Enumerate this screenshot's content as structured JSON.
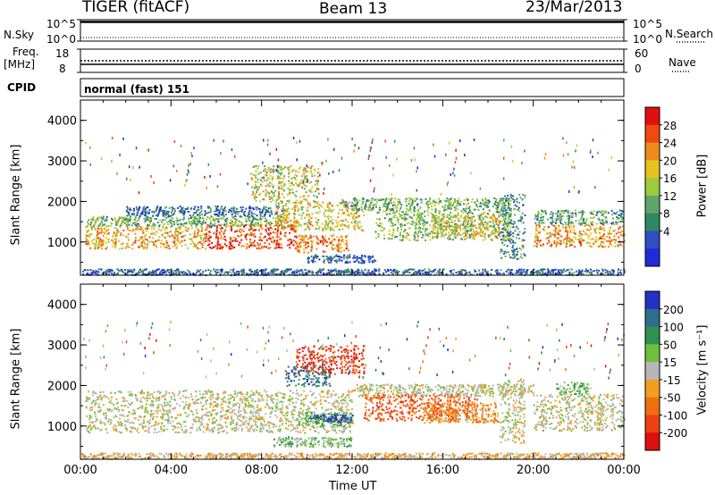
{
  "header": {
    "radar_title": "TIGER (fitACF)",
    "beam": "Beam 13",
    "date": "23/Mar/2013"
  },
  "strips": {
    "nsky_label": "N.Sky",
    "nsky_ticks": [
      "10^5",
      "10^0"
    ],
    "nsearch_label": "N.Search",
    "nsearch_ticks": [
      "10^5",
      "10^0"
    ],
    "freq_label_1": "Freq.",
    "freq_label_2": "[MHz]",
    "freq_ticks": [
      "18",
      "8"
    ],
    "nave_label": "Nave",
    "nave_ticks": [
      "60",
      "0"
    ],
    "cpid_label": "CPID",
    "cpid_value": "normal (fast) 151"
  },
  "colors": {
    "power_scale": [
      "#1f2bd9",
      "#2d4fc0",
      "#2f8a64",
      "#5fa56a",
      "#9ccb3c",
      "#e6c21e",
      "#f08a1c",
      "#ee4a12",
      "#e01010"
    ],
    "velocity_scale": [
      "#2530c8",
      "#2d6e8c",
      "#2f9150",
      "#6ec13c",
      "#b7b7b7",
      "#f0a020",
      "#f07010",
      "#ee4010",
      "#dd0f0f"
    ]
  },
  "chart_data": [
    {
      "type": "heatmap",
      "name": "Power",
      "xlabel": "",
      "ylabel": "Slant Range [km]",
      "x_ticks": [
        "00:00",
        "04:00",
        "08:00",
        "12:00",
        "16:00",
        "20:00",
        "00:00"
      ],
      "y_ticks": [
        "1000",
        "2000",
        "3000",
        "4000"
      ],
      "xlim_hours": [
        0,
        24
      ],
      "ylim_km": [
        180,
        4500
      ],
      "colorbar": {
        "label": "Power [dB]",
        "ticks": [
          "28",
          "24",
          "20",
          "16",
          "12",
          "8",
          "4"
        ],
        "range": [
          0,
          30
        ]
      },
      "regions": [
        {
          "t": [
            0.2,
            5.5
          ],
          "r": [
            850,
            1400
          ],
          "value": 20
        },
        {
          "t": [
            5.5,
            9.5
          ],
          "r": [
            850,
            1450
          ],
          "value": 26
        },
        {
          "t": [
            9.5,
            11.8
          ],
          "r": [
            750,
            1200
          ],
          "value": 22
        },
        {
          "t": [
            0.2,
            9.0
          ],
          "r": [
            1400,
            1650
          ],
          "value": 12
        },
        {
          "t": [
            2.0,
            9.0
          ],
          "r": [
            1650,
            1900
          ],
          "value": 7
        },
        {
          "t": [
            8.5,
            12.5
          ],
          "r": [
            1300,
            2000
          ],
          "value": 18
        },
        {
          "t": [
            11.5,
            19.0
          ],
          "r": [
            1800,
            2100
          ],
          "value": 12
        },
        {
          "t": [
            13.0,
            19.0
          ],
          "r": [
            1050,
            1800
          ],
          "value": 13
        },
        {
          "t": [
            15.5,
            18.5
          ],
          "r": [
            1150,
            1700
          ],
          "value": 18
        },
        {
          "t": [
            20.0,
            24.0
          ],
          "r": [
            900,
            1450
          ],
          "value": 21
        },
        {
          "t": [
            20.0,
            24.0
          ],
          "r": [
            1450,
            1800
          ],
          "value": 10
        },
        {
          "t": [
            7.5,
            10.5
          ],
          "r": [
            2000,
            2900
          ],
          "value": 16
        },
        {
          "t": [
            10.0,
            13.0
          ],
          "r": [
            500,
            700
          ],
          "value": 6
        },
        {
          "t": [
            0.0,
            24.0
          ],
          "r": [
            200,
            350
          ],
          "value": 6
        },
        {
          "t": [
            18.5,
            19.6
          ],
          "r": [
            600,
            2200
          ],
          "value": 9
        }
      ]
    },
    {
      "type": "heatmap",
      "name": "Velocity",
      "xlabel": "Time UT",
      "ylabel": "Slant Range [km]",
      "x_ticks": [
        "00:00",
        "04:00",
        "08:00",
        "12:00",
        "16:00",
        "20:00",
        "00:00"
      ],
      "y_ticks": [
        "1000",
        "2000",
        "3000",
        "4000"
      ],
      "xlim_hours": [
        0,
        24
      ],
      "ylim_km": [
        180,
        4500
      ],
      "colorbar": {
        "label": "Velocity [m s⁻¹]",
        "ticks": [
          "200",
          "100",
          "50",
          "15",
          "-15",
          "-50",
          "-100",
          "-200"
        ],
        "range": [
          -250,
          250
        ]
      },
      "regions": [
        {
          "t": [
            0.2,
            12.0
          ],
          "r": [
            850,
            1900
          ],
          "value": 0
        },
        {
          "t": [
            12.0,
            20.0
          ],
          "r": [
            1750,
            2050
          ],
          "value": 0
        },
        {
          "t": [
            20.0,
            24.0
          ],
          "r": [
            900,
            1800
          ],
          "value": 0
        },
        {
          "t": [
            12.5,
            17.5
          ],
          "r": [
            1150,
            1800
          ],
          "value": -140
        },
        {
          "t": [
            15.0,
            18.5
          ],
          "r": [
            1100,
            1600
          ],
          "value": -80
        },
        {
          "t": [
            9.5,
            12.0
          ],
          "r": [
            1000,
            1350
          ],
          "value": 60
        },
        {
          "t": [
            10.0,
            12.0
          ],
          "r": [
            1100,
            1300
          ],
          "value": 180
        },
        {
          "t": [
            8.5,
            12.0
          ],
          "r": [
            500,
            750
          ],
          "value": 55
        },
        {
          "t": [
            9.0,
            11.0
          ],
          "r": [
            2000,
            2500
          ],
          "value": 160
        },
        {
          "t": [
            9.5,
            12.5
          ],
          "r": [
            2300,
            3000
          ],
          "value": -180
        },
        {
          "t": [
            21.0,
            22.5
          ],
          "r": [
            1800,
            2100
          ],
          "value": 55
        },
        {
          "t": [
            0.0,
            24.0
          ],
          "r": [
            200,
            350
          ],
          "value": -40
        },
        {
          "t": [
            18.5,
            19.6
          ],
          "r": [
            600,
            2200
          ],
          "value": 0
        }
      ]
    }
  ]
}
